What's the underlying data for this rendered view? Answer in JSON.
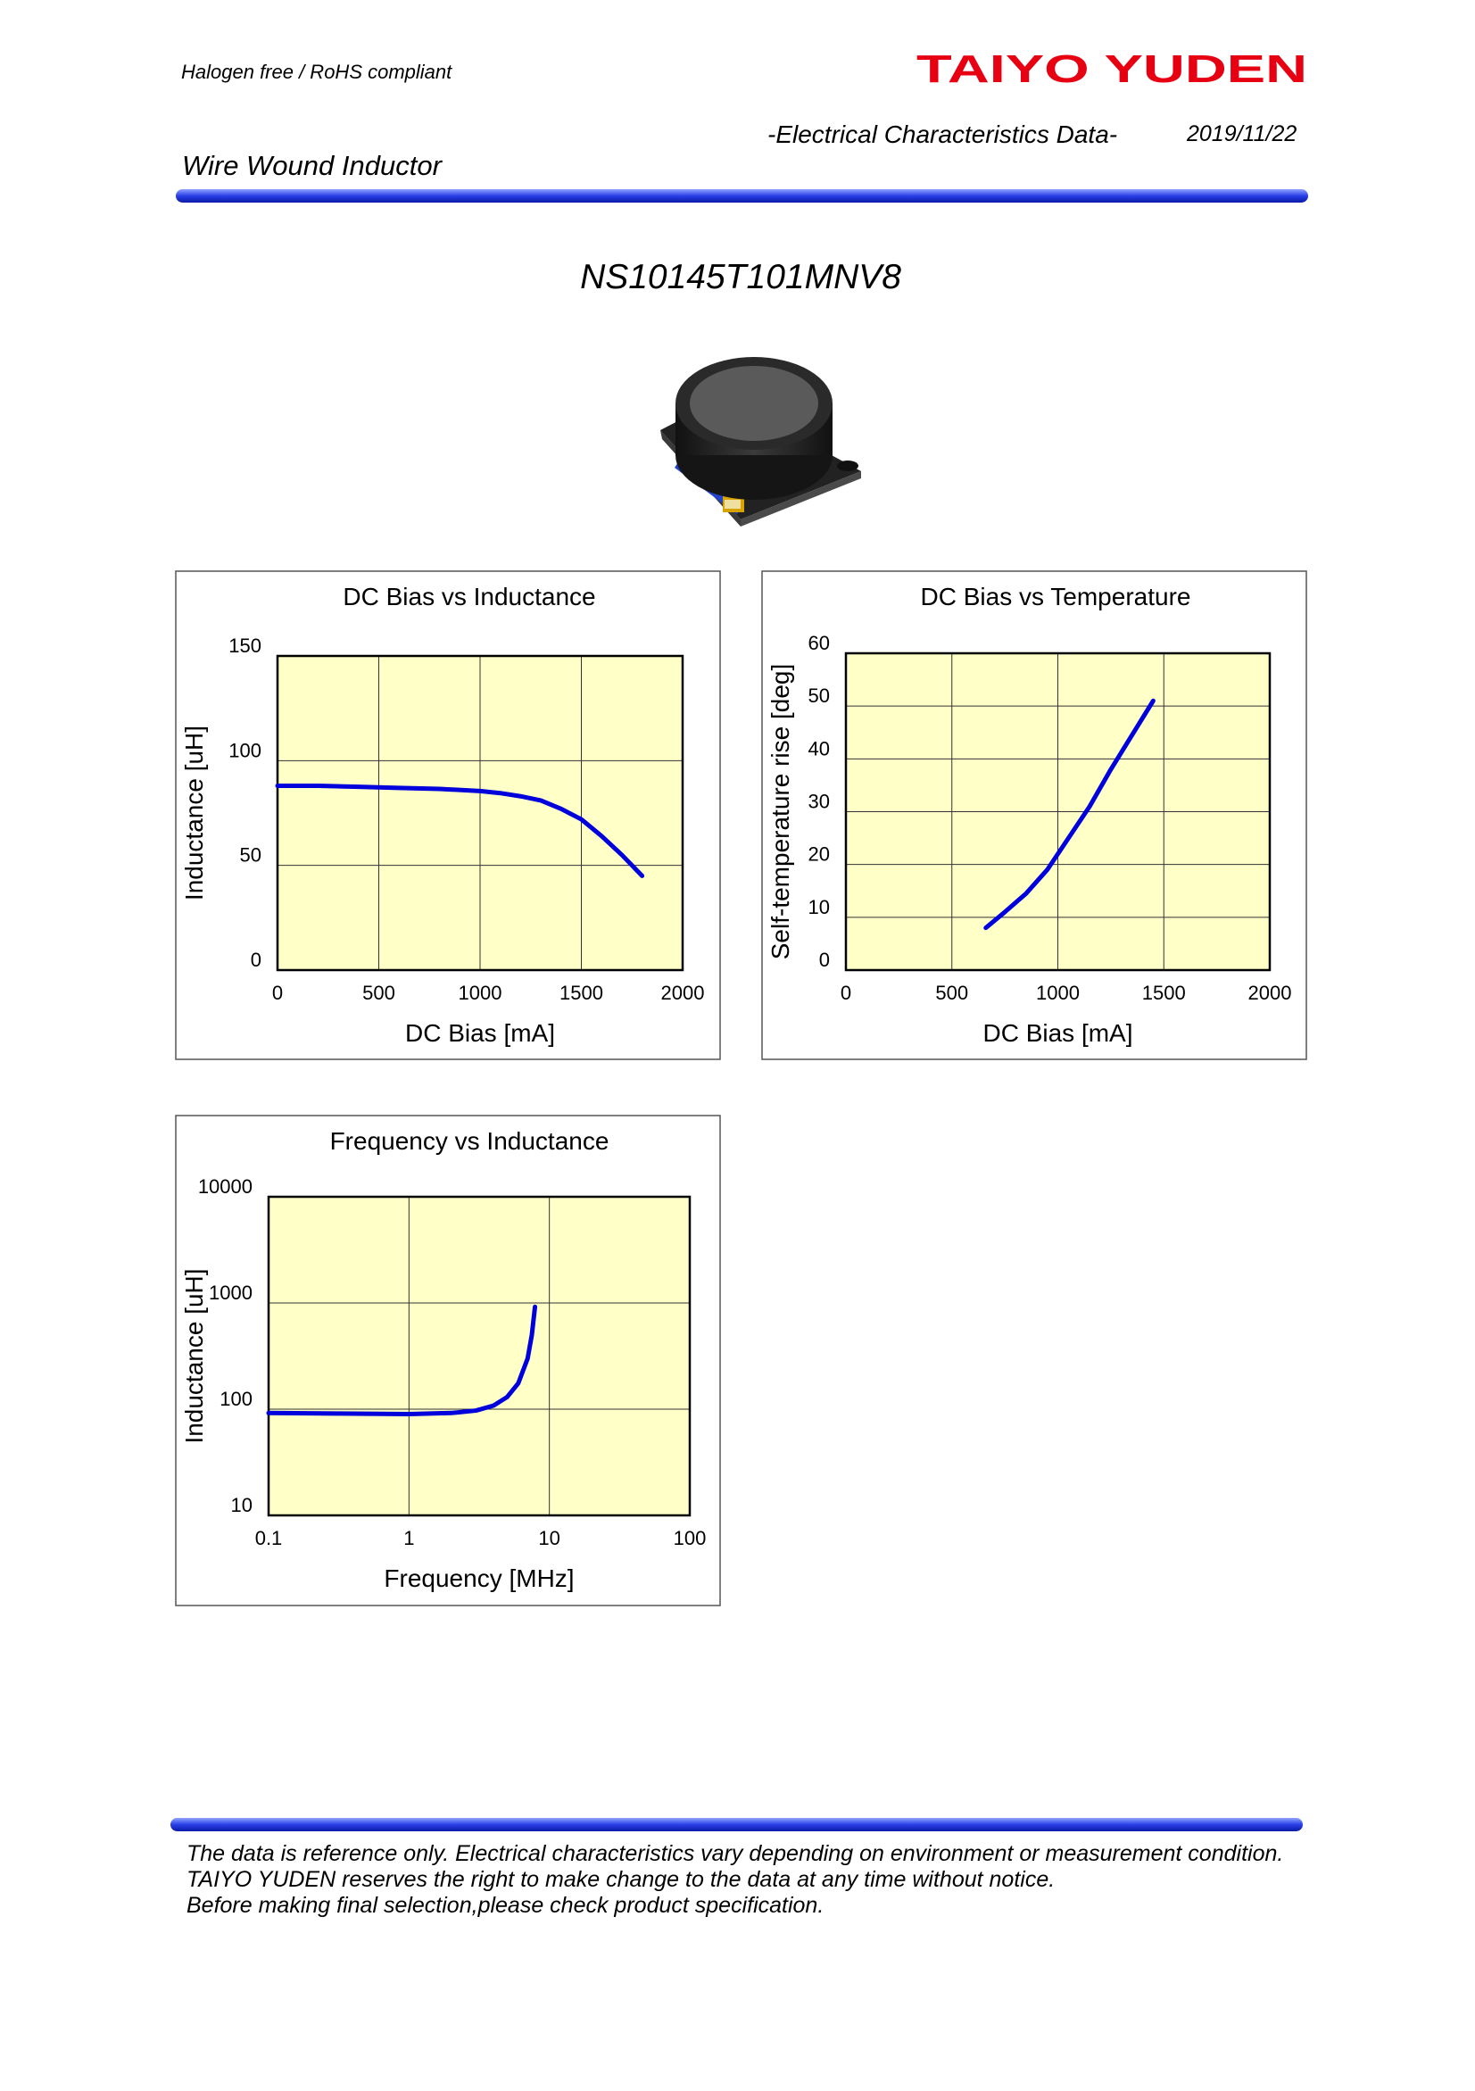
{
  "header": {
    "compliance": "Halogen free  /  RoHS compliant",
    "brand": "TAIYO YUDEN",
    "doc_type": "-Electrical Characteristics Data-",
    "date": "2019/11/22",
    "product_family": "Wire Wound Inductor"
  },
  "part_number": "NS10145T101MNV8",
  "chart_data": [
    {
      "type": "line",
      "title": "DC Bias vs Inductance",
      "x_label": "DC Bias [mA]",
      "y_label": "Inductance [uH]",
      "xlim": [
        0,
        2000
      ],
      "xticks": [
        0,
        500,
        1000,
        1500,
        2000
      ],
      "ylim": [
        0,
        150
      ],
      "yticks": [
        0,
        50,
        100,
        150
      ],
      "grid": true,
      "background": "#ffffc8",
      "series": [
        {
          "color": "#0000dd",
          "x": [
            0,
            200,
            400,
            600,
            800,
            1000,
            1100,
            1200,
            1300,
            1400,
            1500,
            1600,
            1700,
            1800
          ],
          "values": [
            88,
            88,
            87.5,
            87,
            86.5,
            85.5,
            84.5,
            83,
            81,
            77,
            72,
            64,
            55,
            45
          ]
        }
      ]
    },
    {
      "type": "line",
      "title": "DC Bias vs Temperature",
      "x_label": "DC Bias [mA]",
      "y_label": "Self-temperature rise [deg]",
      "xlim": [
        0,
        2000
      ],
      "xticks": [
        0,
        500,
        1000,
        1500,
        2000
      ],
      "ylim": [
        0,
        60
      ],
      "yticks": [
        0,
        10,
        20,
        30,
        40,
        50,
        60
      ],
      "grid": true,
      "background": "#ffffc8",
      "series": [
        {
          "color": "#0000dd",
          "x": [
            660,
            750,
            850,
            950,
            1050,
            1150,
            1250,
            1350,
            1450
          ],
          "values": [
            8,
            11,
            14.5,
            19,
            25,
            31,
            38,
            44.5,
            51
          ]
        }
      ]
    },
    {
      "type": "line",
      "title": "Frequency vs Inductance",
      "x_label": "Frequency [MHz]",
      "y_label": "Inductance [uH]",
      "xscale": "log",
      "yscale": "log",
      "xlim": [
        0.1,
        100
      ],
      "xticks": [
        0.1,
        1,
        10,
        100
      ],
      "ylim": [
        10,
        10000
      ],
      "yticks": [
        10,
        100,
        1000,
        10000
      ],
      "grid": true,
      "background": "#ffffc8",
      "series": [
        {
          "color": "#0000dd",
          "x": [
            0.1,
            0.3,
            1,
            2,
            3,
            4,
            5,
            6,
            7,
            7.5,
            7.9
          ],
          "values": [
            92,
            91,
            90,
            92,
            97,
            108,
            130,
            175,
            300,
            500,
            920
          ]
        }
      ]
    }
  ],
  "footer": {
    "lines": [
      "The data is reference only. Electrical characteristics vary depending on environment or measurement condition.",
      "TAIYO YUDEN reserves the right to make change to the data at any time without notice.",
      "Before making final selection,please check product specification."
    ]
  }
}
